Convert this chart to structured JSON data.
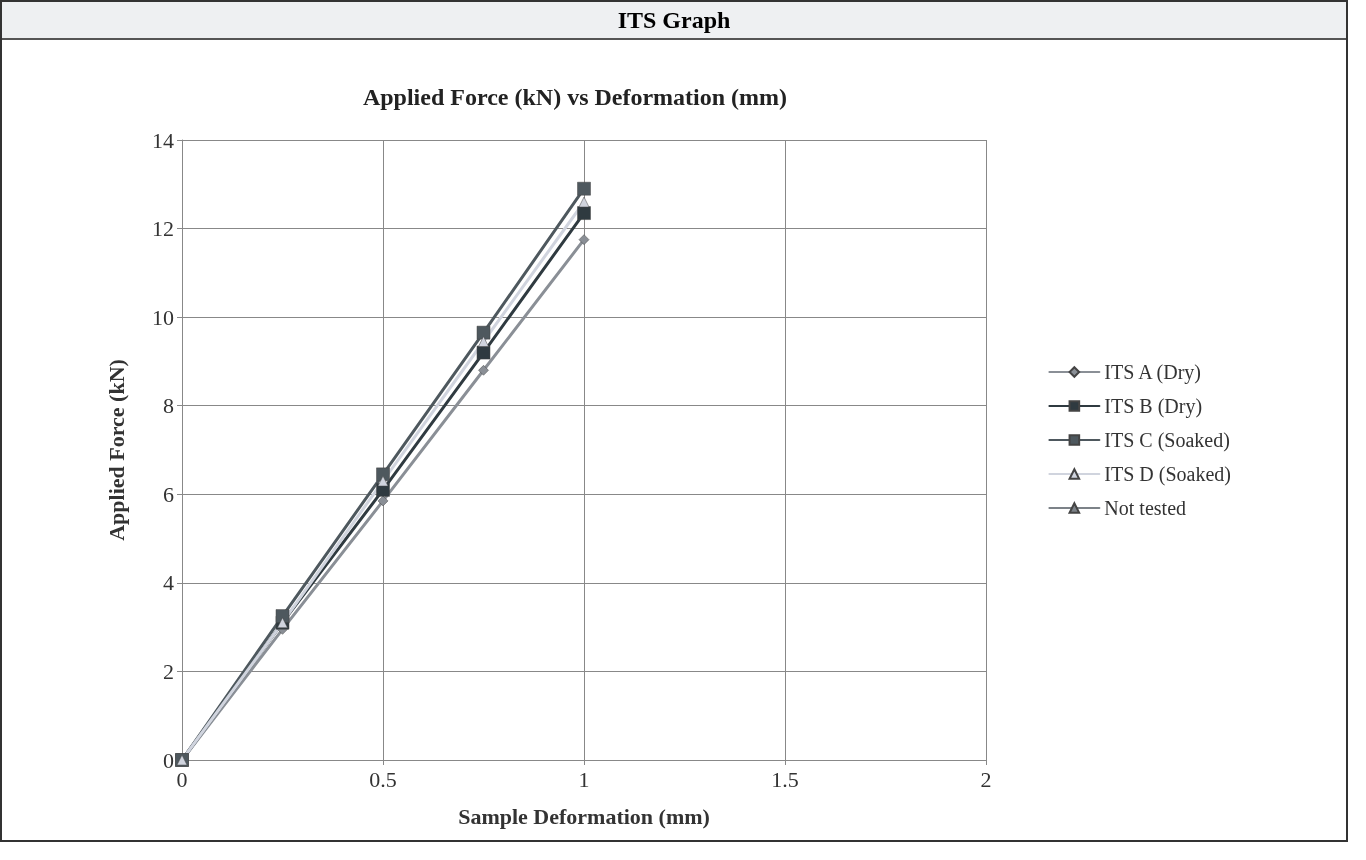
{
  "chart_data": {
    "type": "line",
    "title": "ITS Graph",
    "subtitle": "Applied Force (kN) vs Deformation (mm)",
    "xlabel": "Sample Deformation (mm)",
    "ylabel": "Applied Force (kN)",
    "x": [
      0,
      0.25,
      0.5,
      0.75,
      1
    ],
    "series": [
      {
        "name": "ITS A (Dry)",
        "color": "#8a8f96",
        "marker": "diamond",
        "values": [
          0,
          2.95,
          5.85,
          8.8,
          11.75
        ]
      },
      {
        "name": "ITS B (Dry)",
        "color": "#2f3a40",
        "marker": "square",
        "values": [
          0,
          3.1,
          6.1,
          9.2,
          12.35
        ]
      },
      {
        "name": "ITS C (Soaked)",
        "color": "#4e585e",
        "marker": "square",
        "values": [
          0,
          3.25,
          6.45,
          9.65,
          12.9
        ]
      },
      {
        "name": "ITS D (Soaked)",
        "color": "#d0d4de",
        "marker": "triangle",
        "values": [
          0,
          3.1,
          6.3,
          9.45,
          12.6
        ]
      },
      {
        "name": "Not tested",
        "color": "#7c8288",
        "marker": "triangle",
        "values": [
          null,
          null,
          null,
          null,
          null
        ]
      }
    ],
    "xlim": [
      0,
      2
    ],
    "xticks": [
      0,
      0.5,
      1,
      1.5,
      2
    ],
    "ylim": [
      0,
      14
    ],
    "yticks": [
      0,
      2,
      4,
      6,
      8,
      10,
      12,
      14
    ],
    "grid": true,
    "legend": "right",
    "line_style": "solid"
  }
}
